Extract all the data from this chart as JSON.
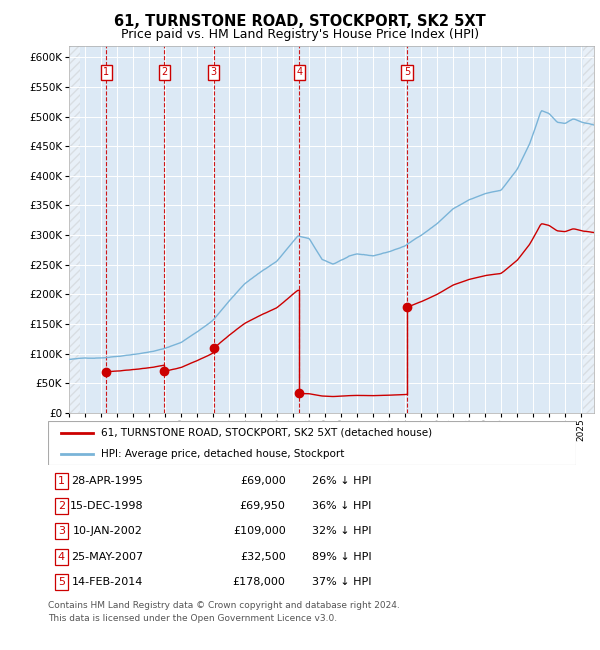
{
  "title": "61, TURNSTONE ROAD, STOCKPORT, SK2 5XT",
  "subtitle": "Price paid vs. HM Land Registry's House Price Index (HPI)",
  "title_fontsize": 10.5,
  "subtitle_fontsize": 9,
  "plot_bg_color": "#dce9f5",
  "transactions": [
    {
      "num": 1,
      "price": 69000,
      "x_year": 1995.32
    },
    {
      "num": 2,
      "price": 69950,
      "x_year": 1998.95
    },
    {
      "num": 3,
      "price": 109000,
      "x_year": 2002.03
    },
    {
      "num": 4,
      "price": 32500,
      "x_year": 2007.4
    },
    {
      "num": 5,
      "price": 178000,
      "x_year": 2014.12
    }
  ],
  "table_rows": [
    {
      "num": 1,
      "date": "28-APR-1995",
      "price": "£69,000",
      "pct": "26% ↓ HPI"
    },
    {
      "num": 2,
      "date": "15-DEC-1998",
      "price": "£69,950",
      "pct": "36% ↓ HPI"
    },
    {
      "num": 3,
      "date": "10-JAN-2002",
      "price": "£109,000",
      "pct": "32% ↓ HPI"
    },
    {
      "num": 4,
      "date": "25-MAY-2007",
      "price": "£32,500",
      "pct": "89% ↓ HPI"
    },
    {
      "num": 5,
      "date": "14-FEB-2014",
      "price": "£178,000",
      "pct": "37% ↓ HPI"
    }
  ],
  "legend_line1": "61, TURNSTONE ROAD, STOCKPORT, SK2 5XT (detached house)",
  "legend_line2": "HPI: Average price, detached house, Stockport",
  "footer": "Contains HM Land Registry data © Crown copyright and database right 2024.\nThis data is licensed under the Open Government Licence v3.0.",
  "hpi_color": "#7ab4d8",
  "price_color": "#cc0000",
  "vline_color": "#cc0000",
  "ylim": [
    0,
    620000
  ],
  "yticks": [
    0,
    50000,
    100000,
    150000,
    200000,
    250000,
    300000,
    350000,
    400000,
    450000,
    500000,
    550000,
    600000
  ],
  "xlim_start": 1993.0,
  "xlim_end": 2025.8,
  "hpi_anchors": [
    [
      1993.0,
      90000
    ],
    [
      1994.0,
      92000
    ],
    [
      1995.0,
      93000
    ],
    [
      1996.0,
      96000
    ],
    [
      1997.0,
      100000
    ],
    [
      1998.0,
      104000
    ],
    [
      1999.0,
      110000
    ],
    [
      2000.0,
      120000
    ],
    [
      2001.0,
      138000
    ],
    [
      2002.0,
      158000
    ],
    [
      2003.0,
      190000
    ],
    [
      2004.0,
      220000
    ],
    [
      2005.0,
      240000
    ],
    [
      2006.0,
      258000
    ],
    [
      2007.3,
      300000
    ],
    [
      2008.0,
      295000
    ],
    [
      2008.8,
      260000
    ],
    [
      2009.5,
      252000
    ],
    [
      2010.5,
      265000
    ],
    [
      2011.0,
      268000
    ],
    [
      2012.0,
      265000
    ],
    [
      2013.0,
      272000
    ],
    [
      2014.0,
      282000
    ],
    [
      2015.0,
      300000
    ],
    [
      2016.0,
      320000
    ],
    [
      2017.0,
      345000
    ],
    [
      2018.0,
      360000
    ],
    [
      2019.0,
      370000
    ],
    [
      2020.0,
      375000
    ],
    [
      2021.0,
      410000
    ],
    [
      2021.8,
      455000
    ],
    [
      2022.5,
      510000
    ],
    [
      2023.0,
      505000
    ],
    [
      2023.5,
      490000
    ],
    [
      2024.0,
      488000
    ],
    [
      2024.5,
      495000
    ],
    [
      2025.0,
      490000
    ],
    [
      2025.8,
      485000
    ]
  ]
}
